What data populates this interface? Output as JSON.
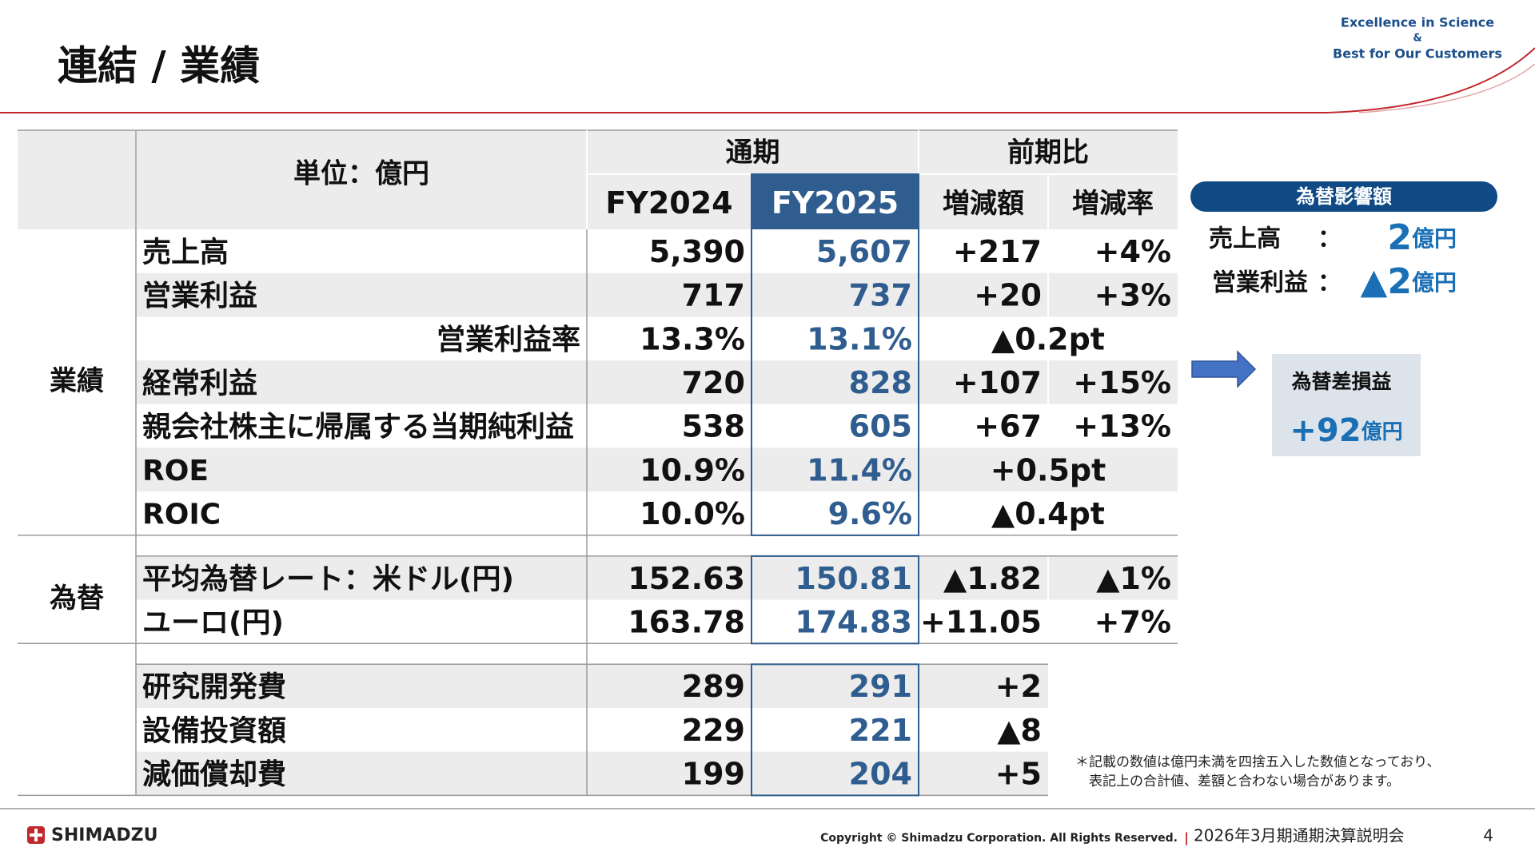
{
  "header": {
    "title": "連結 / 業績",
    "tagline": [
      "Excellence in Science",
      "&",
      "Best for Our Customers"
    ]
  },
  "table": {
    "unit": "単位：億円",
    "period_header": "通期",
    "comparison_header": "前期比",
    "columns": [
      "FY2024",
      "FY2025",
      "増減額",
      "増減率"
    ],
    "sections": [
      {
        "label": "業績",
        "rows": [
          {
            "cells": [
              "売上高",
              "5,390",
              "5,607",
              "+217",
              "+4%"
            ]
          },
          {
            "cells": [
              "営業利益",
              "717",
              "737",
              "+20",
              "+3%"
            ]
          },
          {
            "cells": [
              "営業利益率",
              "13.3%",
              "13.1%",
              "▲0.2pt"
            ],
            "merged": true,
            "label_align": "right"
          },
          {
            "cells": [
              "経常利益",
              "720",
              "828",
              "+107",
              "+15%"
            ]
          },
          {
            "cells": [
              "親会社株主に帰属する当期純利益",
              "538",
              "605",
              "+67",
              "+13%"
            ]
          },
          {
            "cells": [
              "ROE",
              "10.9%",
              "11.4%",
              "+0.5pt"
            ],
            "merged": true
          },
          {
            "cells": [
              "ROIC",
              "10.0%",
              "9.6%",
              "▲0.4pt"
            ],
            "merged": true
          }
        ]
      },
      {
        "label": "為替",
        "rows": [
          {
            "cells": [
              "平均為替レート：米ドル(円)",
              "152.63",
              "150.81",
              "▲1.82",
              "▲1%"
            ]
          },
          {
            "cells": [
              "ユーロ(円)",
              "163.78",
              "174.83",
              "+11.05",
              "+7%"
            ]
          }
        ]
      },
      {
        "no_rate_column": true,
        "rows": [
          {
            "cells": [
              "研究開発費",
              "289",
              "291",
              "+2"
            ]
          },
          {
            "cells": [
              "設備投資額",
              "229",
              "221",
              "▲8"
            ]
          },
          {
            "cells": [
              "減価償却費",
              "199",
              "204",
              "+5"
            ]
          }
        ]
      }
    ]
  },
  "fx_impact": {
    "title": "為替影響額",
    "items": [
      {
        "label": "売上高",
        "separator": "：",
        "amount": "2",
        "unit": "億円"
      },
      {
        "label": "営業利益",
        "separator": "：",
        "amount": "▲2",
        "unit": "億円"
      }
    ]
  },
  "fx_gain": {
    "title": "為替差損益",
    "amount": "+92",
    "unit": "億円"
  },
  "note": [
    "＊記載の数値は億円未満を四捨五入した数値となっており、",
    "表記上の合計値、差額と合わない場合があります。"
  ],
  "footer": {
    "logo": "SHIMADZU",
    "copyright": "Copyright © Shimadzu Corporation. All Rights Reserved.",
    "separator": "|",
    "event": "2026年3月期通期決算説明会",
    "page": "4"
  }
}
